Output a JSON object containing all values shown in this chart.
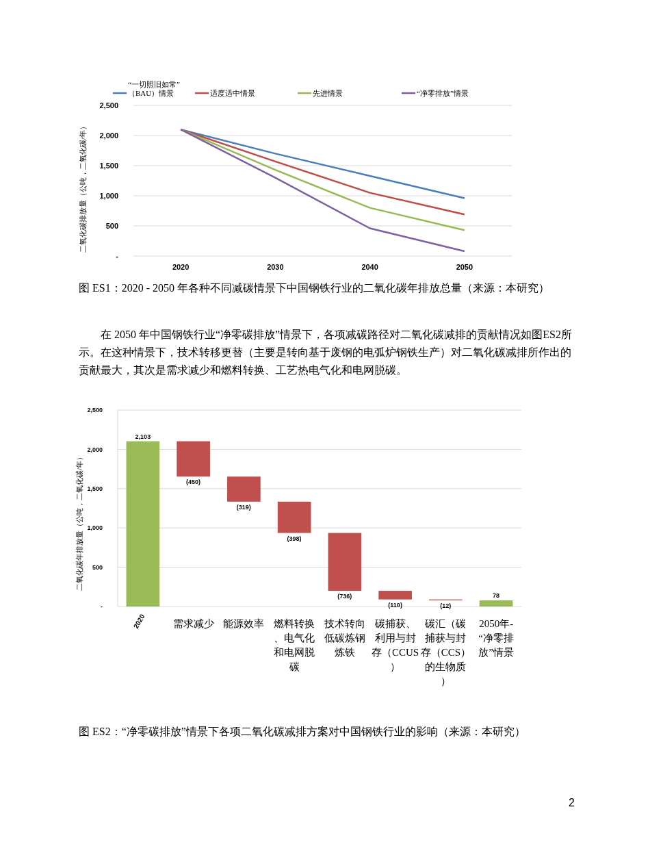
{
  "chart_data": [
    {
      "type": "line",
      "ylabel": "二氧化碳排放量（公吨，二氧化碳/年）",
      "categories": [
        "2020",
        "2030",
        "2040",
        "2050"
      ],
      "series": [
        {
          "name": "“一切照旧如常”（BAU）情景",
          "color": "#4a7ebb",
          "values": [
            2100,
            1700,
            1330,
            960
          ]
        },
        {
          "name": "适度适中情景",
          "color": "#be4b48",
          "values": [
            2100,
            1570,
            1050,
            690
          ]
        },
        {
          "name": "先进情景",
          "color": "#98b954",
          "values": [
            2100,
            1430,
            800,
            430
          ]
        },
        {
          "name": "“净零排放”情景",
          "color": "#7d60a0",
          "values": [
            2100,
            1300,
            460,
            80
          ]
        }
      ],
      "ylim": [
        0,
        2500
      ],
      "yticks": [
        {
          "value": 0,
          "label": "-"
        },
        {
          "value": 500,
          "label": "500"
        },
        {
          "value": 1000,
          "label": "1,000"
        },
        {
          "value": 1500,
          "label": "1,500"
        },
        {
          "value": 2000,
          "label": "2,000"
        },
        {
          "value": 2500,
          "label": "2,500"
        }
      ],
      "grid": "y",
      "legend": "top",
      "annotations": [
        "图 ES1：2020 - 2050 年各种不同减碳情景下中国钢铁行业的二氧化碳年排放总量（来源：本研究）",
        "在 2050 年中国钢铁行业“净零碳排放”情景下，各项减碳路径对二氧化碳减排的贡献情况如图ES2所示。在这种情景下，技术转移更替（主要是转向基于废钢的电弧炉钢铁生产）对二氧化碳减排所作出的贡献最大，其次是需求减少和燃料转换、工艺热电气化和电网脱碳。"
      ]
    },
    {
      "type": "bar",
      "ylabel": "二氧化碳年排放量（公吨，二氧化碳/年）",
      "categories": [
        "2020",
        "需求减少",
        "能源效率",
        "燃料转换、电气化和电网脱碳",
        "技术转向低碳炼钢炼铁",
        "碳捕获、利用与封存（CCUS）",
        "碳汇（碳捕获与封存（CCS）的生物质）",
        "2050年-“净零排放”情景"
      ],
      "values": [
        2103,
        -450,
        -319,
        -398,
        -736,
        -110,
        -12,
        78
      ],
      "base": [
        0,
        2103,
        1653,
        1334,
        936,
        200,
        90,
        0
      ],
      "colors": [
        "#9bbb59",
        "#c0504d",
        "#c0504d",
        "#c0504d",
        "#c0504d",
        "#c0504d",
        "#c0504d",
        "#9bbb59"
      ],
      "value_labels": [
        "2,103",
        "(450)",
        "(319)",
        "(398)",
        "(736)",
        "(110)",
        "(12)",
        "78"
      ],
      "ylim": [
        0,
        2500
      ],
      "yticks": [
        {
          "value": 0,
          "label": "-"
        },
        {
          "value": 500,
          "label": "500"
        },
        {
          "value": 1000,
          "label": "1,000"
        },
        {
          "value": 1500,
          "label": "1,500"
        },
        {
          "value": 2000,
          "label": "2,000"
        },
        {
          "value": 2500,
          "label": "2,500"
        }
      ],
      "grid": "y",
      "annotations": [
        "图 ES2：“净零碳排放”情景下各项二氧化碳减排方案对中国钢铁行业的影响（来源：本研究）",
        "2"
      ]
    }
  ]
}
